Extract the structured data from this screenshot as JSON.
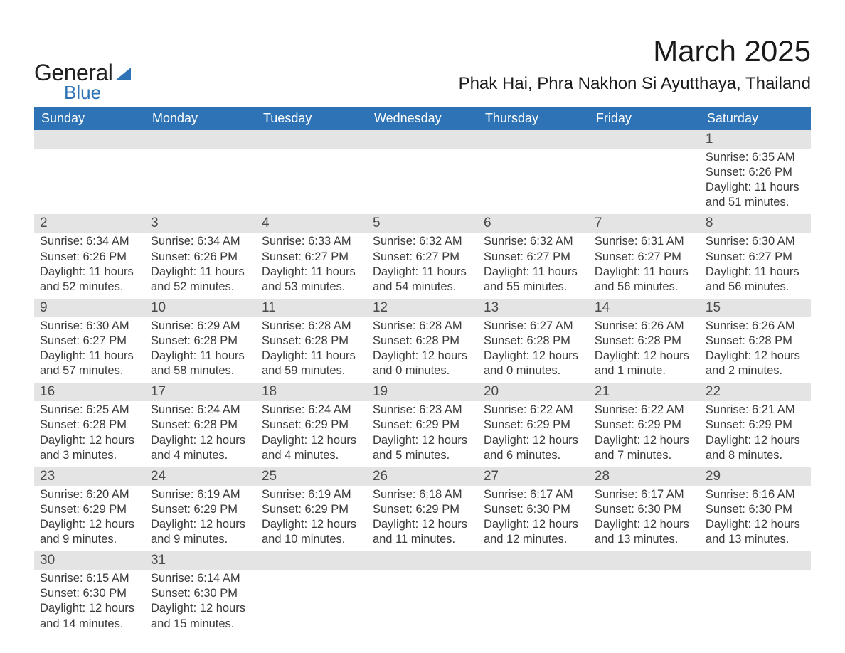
{
  "logo": {
    "general": "General",
    "blue": "Blue"
  },
  "title": "March 2025",
  "location": "Phak Hai, Phra Nakhon Si Ayutthaya, Thailand",
  "colors": {
    "header_bg": "#2d73b5",
    "header_text": "#ffffff",
    "daynum_bg": "#e4e4e4",
    "row_divider": "#2d73b5",
    "body_text": "#3a3a3a",
    "title_text": "#1a1a1a",
    "logo_general": "#222222",
    "logo_blue": "#2d73b5",
    "page_bg": "#ffffff"
  },
  "typography": {
    "month_title_fontsize": 42,
    "location_fontsize": 24,
    "weekday_fontsize": 18,
    "daynum_fontsize": 19,
    "body_fontsize": 16.5
  },
  "weekdays": [
    "Sunday",
    "Monday",
    "Tuesday",
    "Wednesday",
    "Thursday",
    "Friday",
    "Saturday"
  ],
  "weeks": [
    [
      null,
      null,
      null,
      null,
      null,
      null,
      {
        "day": "1",
        "sunrise": "Sunrise: 6:35 AM",
        "sunset": "Sunset: 6:26 PM",
        "daylight": "Daylight: 11 hours and 51 minutes."
      }
    ],
    [
      {
        "day": "2",
        "sunrise": "Sunrise: 6:34 AM",
        "sunset": "Sunset: 6:26 PM",
        "daylight": "Daylight: 11 hours and 52 minutes."
      },
      {
        "day": "3",
        "sunrise": "Sunrise: 6:34 AM",
        "sunset": "Sunset: 6:26 PM",
        "daylight": "Daylight: 11 hours and 52 minutes."
      },
      {
        "day": "4",
        "sunrise": "Sunrise: 6:33 AM",
        "sunset": "Sunset: 6:27 PM",
        "daylight": "Daylight: 11 hours and 53 minutes."
      },
      {
        "day": "5",
        "sunrise": "Sunrise: 6:32 AM",
        "sunset": "Sunset: 6:27 PM",
        "daylight": "Daylight: 11 hours and 54 minutes."
      },
      {
        "day": "6",
        "sunrise": "Sunrise: 6:32 AM",
        "sunset": "Sunset: 6:27 PM",
        "daylight": "Daylight: 11 hours and 55 minutes."
      },
      {
        "day": "7",
        "sunrise": "Sunrise: 6:31 AM",
        "sunset": "Sunset: 6:27 PM",
        "daylight": "Daylight: 11 hours and 56 minutes."
      },
      {
        "day": "8",
        "sunrise": "Sunrise: 6:30 AM",
        "sunset": "Sunset: 6:27 PM",
        "daylight": "Daylight: 11 hours and 56 minutes."
      }
    ],
    [
      {
        "day": "9",
        "sunrise": "Sunrise: 6:30 AM",
        "sunset": "Sunset: 6:27 PM",
        "daylight": "Daylight: 11 hours and 57 minutes."
      },
      {
        "day": "10",
        "sunrise": "Sunrise: 6:29 AM",
        "sunset": "Sunset: 6:28 PM",
        "daylight": "Daylight: 11 hours and 58 minutes."
      },
      {
        "day": "11",
        "sunrise": "Sunrise: 6:28 AM",
        "sunset": "Sunset: 6:28 PM",
        "daylight": "Daylight: 11 hours and 59 minutes."
      },
      {
        "day": "12",
        "sunrise": "Sunrise: 6:28 AM",
        "sunset": "Sunset: 6:28 PM",
        "daylight": "Daylight: 12 hours and 0 minutes."
      },
      {
        "day": "13",
        "sunrise": "Sunrise: 6:27 AM",
        "sunset": "Sunset: 6:28 PM",
        "daylight": "Daylight: 12 hours and 0 minutes."
      },
      {
        "day": "14",
        "sunrise": "Sunrise: 6:26 AM",
        "sunset": "Sunset: 6:28 PM",
        "daylight": "Daylight: 12 hours and 1 minute."
      },
      {
        "day": "15",
        "sunrise": "Sunrise: 6:26 AM",
        "sunset": "Sunset: 6:28 PM",
        "daylight": "Daylight: 12 hours and 2 minutes."
      }
    ],
    [
      {
        "day": "16",
        "sunrise": "Sunrise: 6:25 AM",
        "sunset": "Sunset: 6:28 PM",
        "daylight": "Daylight: 12 hours and 3 minutes."
      },
      {
        "day": "17",
        "sunrise": "Sunrise: 6:24 AM",
        "sunset": "Sunset: 6:28 PM",
        "daylight": "Daylight: 12 hours and 4 minutes."
      },
      {
        "day": "18",
        "sunrise": "Sunrise: 6:24 AM",
        "sunset": "Sunset: 6:29 PM",
        "daylight": "Daylight: 12 hours and 4 minutes."
      },
      {
        "day": "19",
        "sunrise": "Sunrise: 6:23 AM",
        "sunset": "Sunset: 6:29 PM",
        "daylight": "Daylight: 12 hours and 5 minutes."
      },
      {
        "day": "20",
        "sunrise": "Sunrise: 6:22 AM",
        "sunset": "Sunset: 6:29 PM",
        "daylight": "Daylight: 12 hours and 6 minutes."
      },
      {
        "day": "21",
        "sunrise": "Sunrise: 6:22 AM",
        "sunset": "Sunset: 6:29 PM",
        "daylight": "Daylight: 12 hours and 7 minutes."
      },
      {
        "day": "22",
        "sunrise": "Sunrise: 6:21 AM",
        "sunset": "Sunset: 6:29 PM",
        "daylight": "Daylight: 12 hours and 8 minutes."
      }
    ],
    [
      {
        "day": "23",
        "sunrise": "Sunrise: 6:20 AM",
        "sunset": "Sunset: 6:29 PM",
        "daylight": "Daylight: 12 hours and 9 minutes."
      },
      {
        "day": "24",
        "sunrise": "Sunrise: 6:19 AM",
        "sunset": "Sunset: 6:29 PM",
        "daylight": "Daylight: 12 hours and 9 minutes."
      },
      {
        "day": "25",
        "sunrise": "Sunrise: 6:19 AM",
        "sunset": "Sunset: 6:29 PM",
        "daylight": "Daylight: 12 hours and 10 minutes."
      },
      {
        "day": "26",
        "sunrise": "Sunrise: 6:18 AM",
        "sunset": "Sunset: 6:29 PM",
        "daylight": "Daylight: 12 hours and 11 minutes."
      },
      {
        "day": "27",
        "sunrise": "Sunrise: 6:17 AM",
        "sunset": "Sunset: 6:30 PM",
        "daylight": "Daylight: 12 hours and 12 minutes."
      },
      {
        "day": "28",
        "sunrise": "Sunrise: 6:17 AM",
        "sunset": "Sunset: 6:30 PM",
        "daylight": "Daylight: 12 hours and 13 minutes."
      },
      {
        "day": "29",
        "sunrise": "Sunrise: 6:16 AM",
        "sunset": "Sunset: 6:30 PM",
        "daylight": "Daylight: 12 hours and 13 minutes."
      }
    ],
    [
      {
        "day": "30",
        "sunrise": "Sunrise: 6:15 AM",
        "sunset": "Sunset: 6:30 PM",
        "daylight": "Daylight: 12 hours and 14 minutes."
      },
      {
        "day": "31",
        "sunrise": "Sunrise: 6:14 AM",
        "sunset": "Sunset: 6:30 PM",
        "daylight": "Daylight: 12 hours and 15 minutes."
      },
      null,
      null,
      null,
      null,
      null
    ]
  ]
}
